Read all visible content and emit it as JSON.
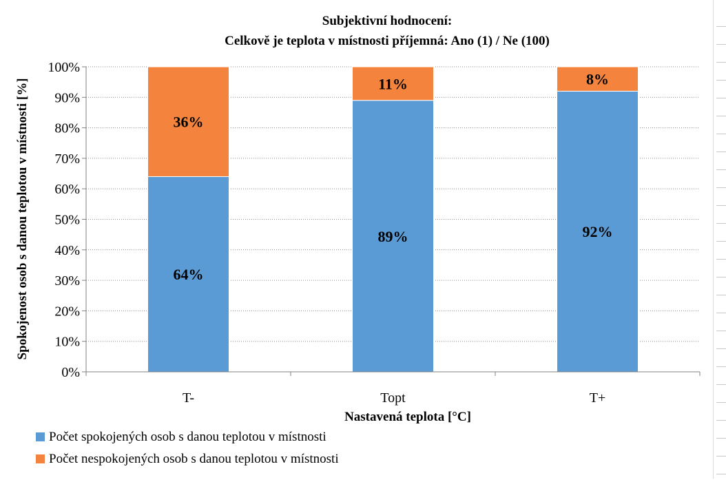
{
  "chart_data": {
    "type": "bar",
    "stacked": true,
    "title_lines": [
      "Subjektivní hodnocení:",
      "Celkově je teplota v místnosti příjemná: Ano (1) / Ne (100)"
    ],
    "xlabel": "Nastavená teplota [°C]",
    "ylabel": "Spokojenost osob s danou teplotou v místnosti [%]",
    "categories": [
      "T-",
      "Topt",
      "T+"
    ],
    "ylim": [
      0,
      100
    ],
    "y_ticks": [
      "0%",
      "10%",
      "20%",
      "30%",
      "40%",
      "50%",
      "60%",
      "70%",
      "80%",
      "90%",
      "100%"
    ],
    "grid": "horizontal-dotted",
    "legend_position": "bottom-left",
    "series": [
      {
        "name": "Počet spokojených osob s danou teplotou v místnosti",
        "values": [
          64,
          89,
          92
        ],
        "labels": [
          "64%",
          "89%",
          "92%"
        ],
        "color": "#5b9bd5"
      },
      {
        "name": "Počet nespokojených osob s danou teplotou v místnosti",
        "values": [
          36,
          11,
          8
        ],
        "labels": [
          "36%",
          "11%",
          "8%"
        ],
        "color": "#f4843d"
      }
    ]
  }
}
